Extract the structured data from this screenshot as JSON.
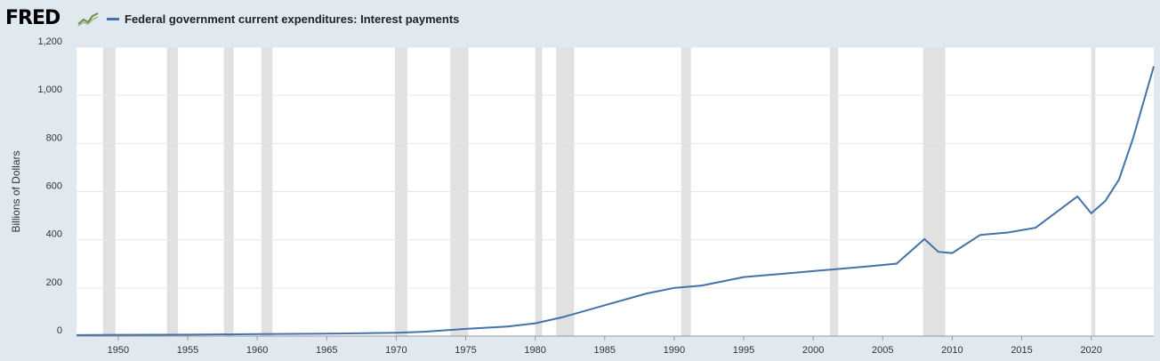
{
  "header": {
    "logo_text": "FRED",
    "logo_icon": "fred-chart-icon",
    "legend_label": "Federal government current expenditures: Interest payments"
  },
  "colors": {
    "series": "#4572a7",
    "recession": "#e1e1e1",
    "grid": "#e6e6e6",
    "background": "#e1e9f0",
    "plot": "#ffffff"
  },
  "chart_data": {
    "type": "line",
    "title": "",
    "xlabel": "",
    "ylabel": "Billions of Dollars",
    "xlim": [
      1947,
      2024.5
    ],
    "ylim": [
      0,
      1200
    ],
    "x_ticks": [
      "1950",
      "1955",
      "1960",
      "1965",
      "1970",
      "1975",
      "1980",
      "1985",
      "1990",
      "1995",
      "2000",
      "2005",
      "2010",
      "2015",
      "2020"
    ],
    "y_ticks": [
      "0",
      "200",
      "400",
      "600",
      "800",
      "1,000",
      "1,200"
    ],
    "grid": true,
    "legend": "top-left",
    "recessions": [
      [
        1948.9,
        1949.8
      ],
      [
        1953.5,
        1954.3
      ],
      [
        1957.6,
        1958.3
      ],
      [
        1960.3,
        1961.1
      ],
      [
        1969.9,
        1970.8
      ],
      [
        1973.9,
        1975.2
      ],
      [
        1980.0,
        1980.5
      ],
      [
        1981.5,
        1982.8
      ],
      [
        1990.5,
        1991.2
      ],
      [
        2001.2,
        2001.8
      ],
      [
        2007.9,
        2009.5
      ],
      [
        2020.0,
        2020.3
      ]
    ],
    "series": [
      {
        "name": "Federal government current expenditures: Interest payments",
        "x": [
          1947,
          1950,
          1955,
          1960,
          1965,
          1970,
          1972,
          1975,
          1978,
          1980,
          1982,
          1985,
          1988,
          1990,
          1992,
          1995,
          1998,
          2000,
          2002,
          2004,
          2006,
          2008,
          2009,
          2010,
          2012,
          2014,
          2016,
          2019,
          2020,
          2021,
          2022,
          2023,
          2024.5
        ],
        "values": [
          4,
          5,
          6,
          8,
          10,
          14,
          18,
          30,
          40,
          53,
          79,
          128,
          177,
          200,
          210,
          245,
          260,
          270,
          280,
          290,
          301,
          403,
          350,
          345,
          420,
          430,
          450,
          580,
          510,
          560,
          650,
          820,
          1120
        ]
      }
    ]
  }
}
